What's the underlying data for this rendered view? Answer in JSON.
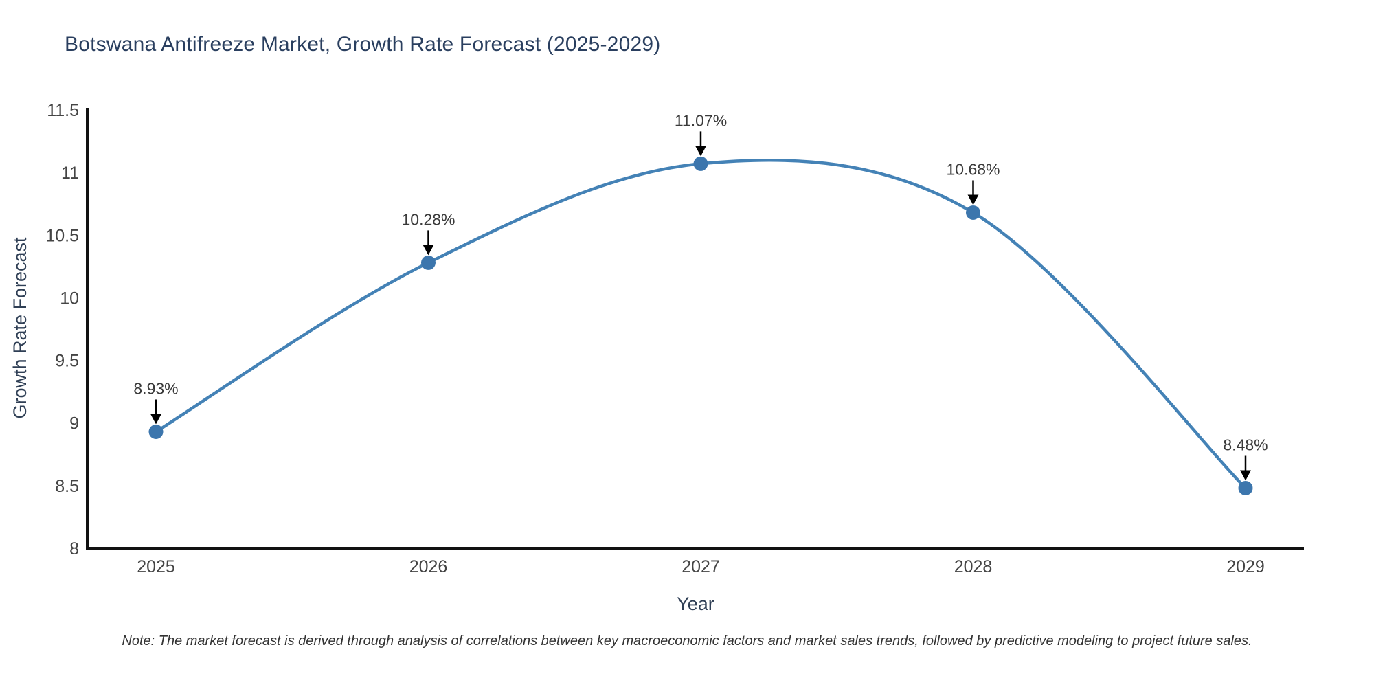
{
  "title": "Botswana Antifreeze Market, Growth Rate Forecast (2025-2029)",
  "note": "Note: The market forecast is derived through analysis of correlations between key macroeconomic factors and market sales trends, followed by predictive modeling to project future sales.",
  "chart_data": {
    "type": "line",
    "title": "Botswana Antifreeze Market, Growth Rate Forecast (2025-2029)",
    "xlabel": "Year",
    "ylabel": "Growth Rate Forecast",
    "categories": [
      "2025",
      "2026",
      "2027",
      "2028",
      "2029"
    ],
    "series": [
      {
        "name": "Growth Rate Forecast",
        "values": [
          8.93,
          10.28,
          11.07,
          10.68,
          8.48
        ],
        "point_labels": [
          "8.93%",
          "10.28%",
          "11.07%",
          "10.68%",
          "8.48%"
        ]
      }
    ],
    "ylim": [
      8,
      11.5
    ],
    "yticks": [
      "8",
      "8.5",
      "9",
      "9.5",
      "10",
      "10.5",
      "11",
      "11.5"
    ],
    "line_shape": "spline",
    "grid": false,
    "legend_position": "none",
    "annotations_have_arrows": true,
    "colors": {
      "line": "#4482b6",
      "marker": "#3c76ad",
      "axis": "#111111",
      "tick_label": "#444444",
      "axis_title": "#2f3f55",
      "annotation_text": "#3a3a3a",
      "arrow": "#000000",
      "title": "#2a3f5f",
      "background": "#ffffff"
    }
  }
}
